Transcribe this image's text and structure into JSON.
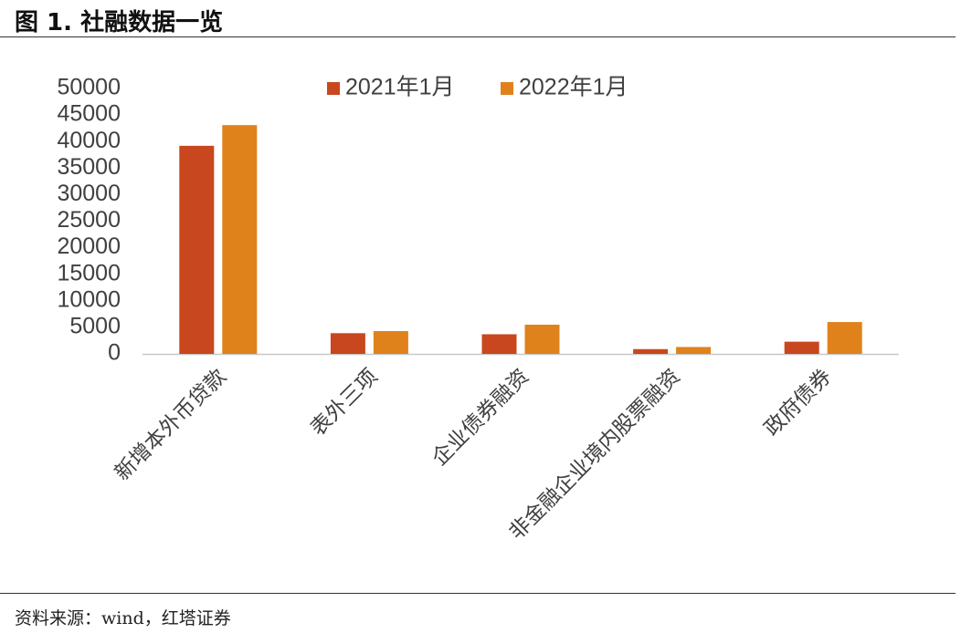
{
  "figure": {
    "title": "图 1. 社融数据一览",
    "source": "资料来源：wind，红塔证券"
  },
  "chart_data": {
    "type": "bar",
    "title": "",
    "xlabel": "",
    "ylabel": "",
    "categories": [
      "新增本外币贷款",
      "表外三项",
      "企业债券融资",
      "非金融企业境内股票融资",
      "政府债券"
    ],
    "series": [
      {
        "name": "2021年1月",
        "color": "#C9471E",
        "values": [
          39200,
          3900,
          3700,
          900,
          2300
        ]
      },
      {
        "name": "2022年1月",
        "color": "#E0821B",
        "values": [
          43100,
          4300,
          5500,
          1300,
          6000
        ]
      }
    ],
    "ylim": [
      0,
      50000
    ],
    "yticks": [
      0,
      5000,
      10000,
      15000,
      20000,
      25000,
      30000,
      35000,
      40000,
      45000,
      50000
    ],
    "legend_position": "top-center",
    "grid": false
  }
}
